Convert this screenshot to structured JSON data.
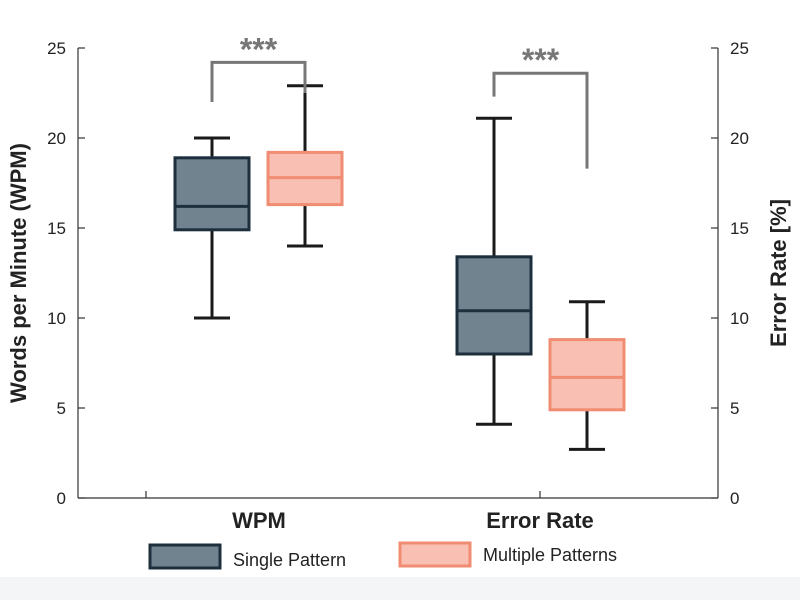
{
  "chart_data": {
    "type": "box",
    "categories": [
      "WPM",
      "Error Rate"
    ],
    "ylabel_left": "Words per Minute (WPM)",
    "ylabel_right": "Error Rate [%]",
    "ylim_left": [
      0,
      25
    ],
    "ylim_right": [
      0,
      25
    ],
    "yticks": [
      "0",
      "5",
      "10",
      "15",
      "20",
      "25"
    ],
    "grid": false,
    "legend_position": "bottom",
    "series": [
      {
        "name": "Single Pattern",
        "fill": "#728390",
        "stroke": "#1d2e3d",
        "boxes": [
          {
            "category": "WPM",
            "axis": "left",
            "min": 10.0,
            "q1": 14.9,
            "median": 16.2,
            "q3": 18.9,
            "max": 20.0
          },
          {
            "category": "Error Rate",
            "axis": "right",
            "min": 4.1,
            "q1": 8.0,
            "median": 10.4,
            "q3": 13.4,
            "max": 21.1
          }
        ]
      },
      {
        "name": "Multiple Patterns",
        "fill": "#f8bfb2",
        "stroke": "#f08c72",
        "boxes": [
          {
            "category": "WPM",
            "axis": "left",
            "min": 14.0,
            "q1": 16.3,
            "median": 17.8,
            "q3": 19.2,
            "max": 22.9
          },
          {
            "category": "Error Rate",
            "axis": "right",
            "min": 2.7,
            "q1": 4.9,
            "median": 6.7,
            "q3": 8.8,
            "max": 10.9
          }
        ]
      }
    ],
    "significance": [
      {
        "category": "WPM",
        "label": "***",
        "left_end": 22.0,
        "right_end": 22.5,
        "top": 24.2
      },
      {
        "category": "Error Rate",
        "label": "***",
        "left_end": 22.3,
        "right_end": 18.3,
        "top": 23.6
      }
    ]
  }
}
